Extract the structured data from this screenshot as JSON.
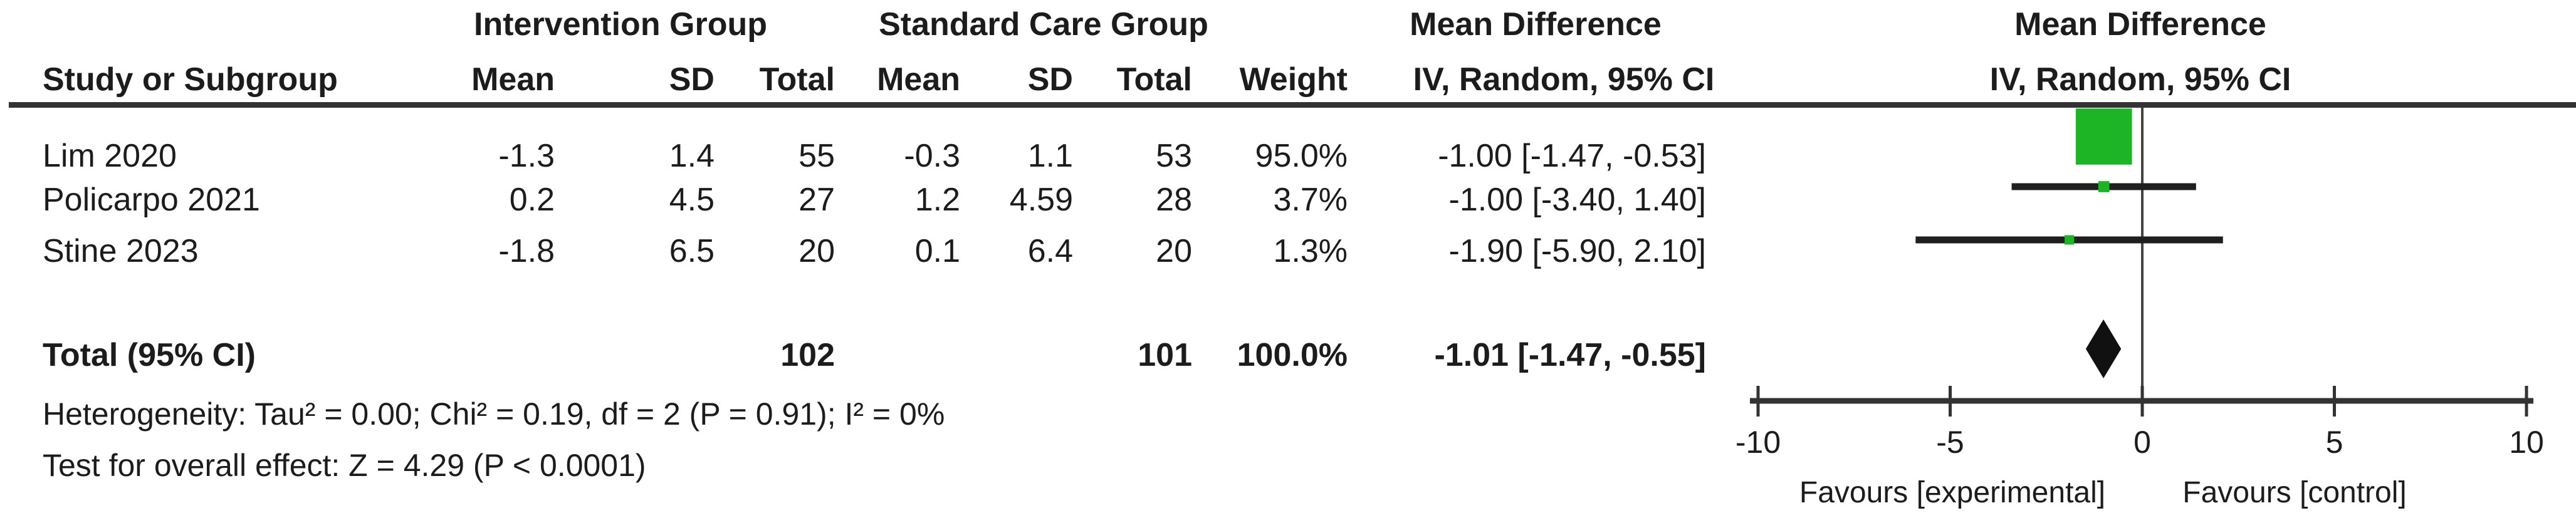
{
  "header": {
    "group1": "Intervention Group",
    "group2": "Standard Care Group",
    "effect_text_col_title": "Mean Difference",
    "effect_text_col_sub": "IV, Random, 95% CI",
    "effect_plot_col_title": "Mean Difference",
    "effect_plot_col_sub": "IV, Random, 95% CI",
    "columns": {
      "study": "Study or Subgroup",
      "int_mean": "Mean",
      "int_sd": "SD",
      "int_total": "Total",
      "sc_mean": "Mean",
      "sc_sd": "SD",
      "sc_total": "Total",
      "weight": "Weight"
    }
  },
  "rows": [
    {
      "study": "Lim 2020",
      "int_mean": "-1.3",
      "int_sd": "1.4",
      "int_total": "55",
      "sc_mean": "-0.3",
      "sc_sd": "1.1",
      "sc_total": "53",
      "weight": "95.0%",
      "ci_text": "-1.00 [-1.47, -0.53]"
    },
    {
      "study": "Policarpo 2021",
      "int_mean": "0.2",
      "int_sd": "4.5",
      "int_total": "27",
      "sc_mean": "1.2",
      "sc_sd": "4.59",
      "sc_total": "28",
      "weight": "3.7%",
      "ci_text": "-1.00 [-3.40, 1.40]"
    },
    {
      "study": "Stine 2023",
      "int_mean": "-1.8",
      "int_sd": "6.5",
      "int_total": "20",
      "sc_mean": "0.1",
      "sc_sd": "6.4",
      "sc_total": "20",
      "weight": "1.3%",
      "ci_text": "-1.90 [-5.90, 2.10]"
    }
  ],
  "total_row": {
    "label": "Total (95% CI)",
    "int_total": "102",
    "sc_total": "101",
    "weight": "100.0%",
    "ci_text": "-1.01 [-1.47, -0.55]"
  },
  "footer": {
    "heterogeneity": "Heterogeneity: Tau² = 0.00; Chi² = 0.19, df = 2 (P = 0.91); I² = 0%",
    "overall_effect": "Test for overall effect: Z = 4.29 (P < 0.0001)"
  },
  "chart_data": {
    "type": "forest",
    "title": "Mean Difference IV, Random, 95% CI",
    "axis": {
      "min": -10,
      "max": 10,
      "ticks": [
        -10,
        -5,
        0,
        5,
        10
      ],
      "zero_line": 0
    },
    "studies": [
      {
        "label": "Lim 2020",
        "estimate": -1.0,
        "ci_low": -1.47,
        "ci_high": -0.53,
        "weight_pct": 95.0
      },
      {
        "label": "Policarpo 2021",
        "estimate": -1.0,
        "ci_low": -3.4,
        "ci_high": 1.4,
        "weight_pct": 3.7
      },
      {
        "label": "Stine 2023",
        "estimate": -1.9,
        "ci_low": -5.9,
        "ci_high": 2.1,
        "weight_pct": 1.3
      }
    ],
    "total": {
      "label": "Total (95% CI)",
      "estimate": -1.01,
      "ci_low": -1.47,
      "ci_high": -0.55,
      "weight_pct": 100.0
    },
    "favours_left": "Favours [experimental]",
    "favours_right": "Favours [control]",
    "marker_color": "#1DB426",
    "diamond_color": "#111111",
    "line_color": "#1f1f1f",
    "axis_color": "#333333"
  }
}
